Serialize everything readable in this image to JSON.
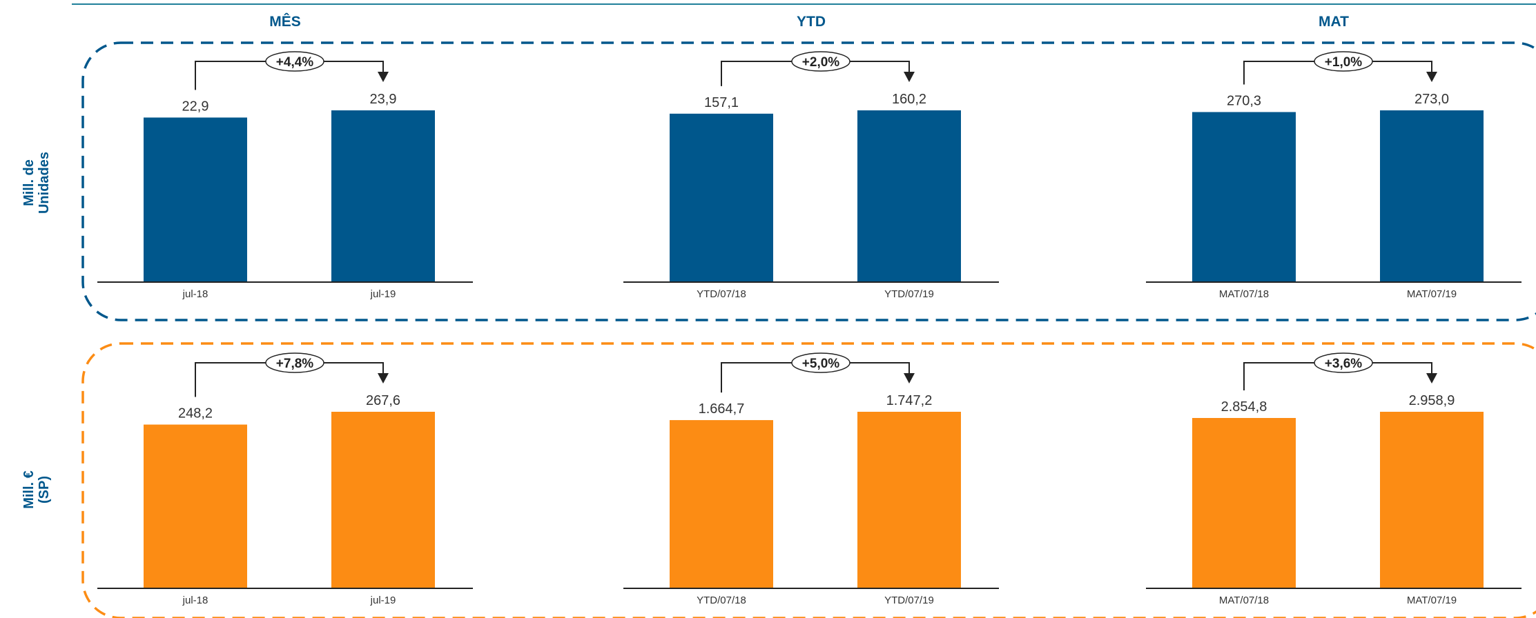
{
  "colors": {
    "blue": "#00578C",
    "orange": "#FC8C14",
    "text": "#333333",
    "axis": "#222222"
  },
  "columns": [
    "MÊS",
    "YTD",
    "MAT"
  ],
  "rows": [
    {
      "label_lines": [
        "Mill. de",
        "Unidades"
      ],
      "color": "#00578C"
    },
    {
      "label_lines": [
        "Mill. €",
        "(SP)"
      ],
      "color": "#FC8C14"
    }
  ],
  "chart_data": [
    {
      "type": "bar",
      "categories": [
        "jul-18",
        "jul-19"
      ],
      "values": [
        22.9,
        23.9
      ],
      "value_labels": [
        "22,9",
        "23,9"
      ],
      "change_label": "+4,4%"
    },
    {
      "type": "bar",
      "categories": [
        "YTD/07/18",
        "YTD/07/19"
      ],
      "values": [
        157.1,
        160.2
      ],
      "value_labels": [
        "157,1",
        "160,2"
      ],
      "change_label": "+2,0%"
    },
    {
      "type": "bar",
      "categories": [
        "MAT/07/18",
        "MAT/07/19"
      ],
      "values": [
        270.3,
        273.0
      ],
      "value_labels": [
        "270,3",
        "273,0"
      ],
      "change_label": "+1,0%"
    },
    {
      "type": "bar",
      "categories": [
        "jul-18",
        "jul-19"
      ],
      "values": [
        248.2,
        267.6
      ],
      "value_labels": [
        "248,2",
        "267,6"
      ],
      "change_label": "+7,8%"
    },
    {
      "type": "bar",
      "categories": [
        "YTD/07/18",
        "YTD/07/19"
      ],
      "values": [
        1664.7,
        1747.2
      ],
      "value_labels": [
        "1.664,7",
        "1.747,2"
      ],
      "change_label": "+5,0%"
    },
    {
      "type": "bar",
      "categories": [
        "MAT/07/18",
        "MAT/07/19"
      ],
      "values": [
        2854.8,
        2958.9
      ],
      "value_labels": [
        "2.854,8",
        "2.958,9"
      ],
      "change_label": "+3,6%"
    }
  ]
}
